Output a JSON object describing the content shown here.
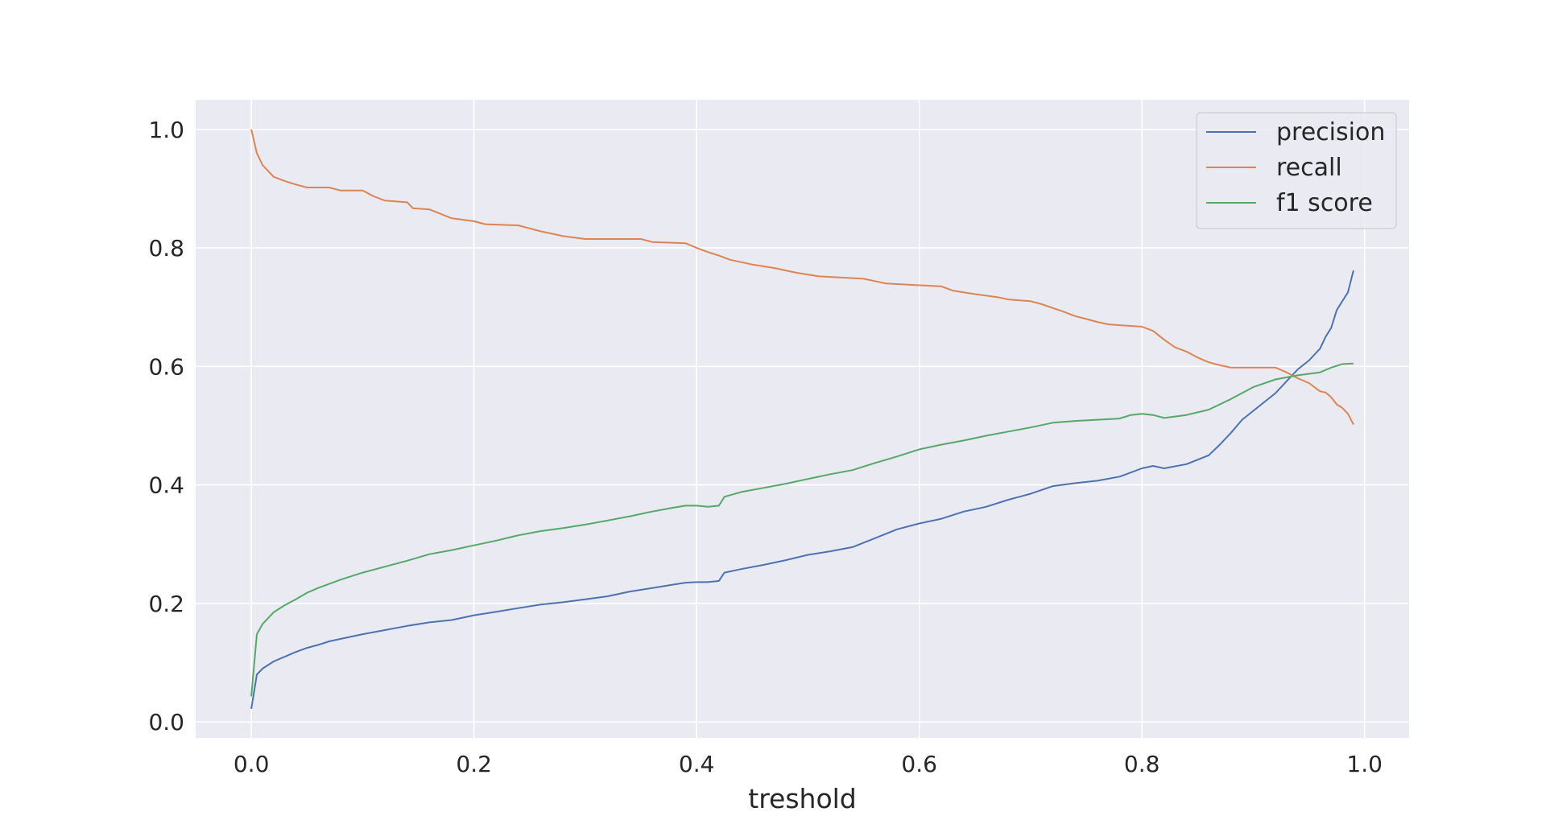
{
  "chart_data": {
    "type": "line",
    "title": "",
    "xlabel": "treshold",
    "ylabel": "",
    "xlim": [
      -0.05,
      1.04
    ],
    "ylim": [
      -0.027,
      1.05
    ],
    "xticks": [
      "0.0",
      "0.2",
      "0.4",
      "0.6",
      "0.8",
      "1.0"
    ],
    "yticks": [
      "0.0",
      "0.2",
      "0.4",
      "0.6",
      "0.8",
      "1.0"
    ],
    "grid": true,
    "legend_position": "top-right",
    "background_color": "#eaeaf2",
    "grid_color": "#ffffff",
    "series": [
      {
        "name": "precision",
        "color": "#4c72b0",
        "x": [
          0.0,
          0.005,
          0.01,
          0.02,
          0.03,
          0.04,
          0.05,
          0.06,
          0.07,
          0.08,
          0.1,
          0.12,
          0.14,
          0.16,
          0.18,
          0.2,
          0.22,
          0.24,
          0.26,
          0.28,
          0.3,
          0.32,
          0.34,
          0.36,
          0.38,
          0.39,
          0.4,
          0.41,
          0.42,
          0.425,
          0.44,
          0.46,
          0.48,
          0.5,
          0.52,
          0.54,
          0.56,
          0.58,
          0.6,
          0.62,
          0.64,
          0.66,
          0.68,
          0.7,
          0.72,
          0.74,
          0.76,
          0.78,
          0.8,
          0.81,
          0.82,
          0.84,
          0.86,
          0.87,
          0.88,
          0.89,
          0.9,
          0.91,
          0.92,
          0.93,
          0.94,
          0.95,
          0.96,
          0.965,
          0.97,
          0.975,
          0.98,
          0.985,
          0.99
        ],
        "y": [
          0.022,
          0.08,
          0.09,
          0.102,
          0.11,
          0.118,
          0.125,
          0.13,
          0.136,
          0.14,
          0.148,
          0.155,
          0.162,
          0.168,
          0.172,
          0.18,
          0.186,
          0.192,
          0.198,
          0.202,
          0.207,
          0.212,
          0.22,
          0.226,
          0.232,
          0.235,
          0.236,
          0.236,
          0.238,
          0.252,
          0.258,
          0.265,
          0.273,
          0.282,
          0.288,
          0.295,
          0.31,
          0.325,
          0.335,
          0.343,
          0.355,
          0.363,
          0.375,
          0.385,
          0.398,
          0.403,
          0.407,
          0.414,
          0.428,
          0.432,
          0.428,
          0.435,
          0.45,
          0.468,
          0.488,
          0.51,
          0.525,
          0.54,
          0.555,
          0.575,
          0.595,
          0.61,
          0.63,
          0.65,
          0.665,
          0.695,
          0.71,
          0.725,
          0.762
        ]
      },
      {
        "name": "recall",
        "color": "#dd8452",
        "x": [
          0.0,
          0.005,
          0.01,
          0.015,
          0.02,
          0.03,
          0.04,
          0.05,
          0.07,
          0.08,
          0.1,
          0.11,
          0.12,
          0.14,
          0.145,
          0.16,
          0.18,
          0.2,
          0.21,
          0.24,
          0.25,
          0.26,
          0.27,
          0.28,
          0.3,
          0.35,
          0.36,
          0.39,
          0.4,
          0.41,
          0.42,
          0.43,
          0.45,
          0.47,
          0.48,
          0.49,
          0.5,
          0.51,
          0.55,
          0.56,
          0.57,
          0.62,
          0.63,
          0.65,
          0.67,
          0.68,
          0.7,
          0.71,
          0.73,
          0.74,
          0.75,
          0.76,
          0.77,
          0.8,
          0.81,
          0.82,
          0.83,
          0.84,
          0.85,
          0.86,
          0.87,
          0.88,
          0.92,
          0.93,
          0.94,
          0.95,
          0.96,
          0.965,
          0.97,
          0.975,
          0.98,
          0.985,
          0.99
        ],
        "y": [
          1.0,
          0.96,
          0.94,
          0.93,
          0.92,
          0.913,
          0.907,
          0.902,
          0.902,
          0.897,
          0.897,
          0.887,
          0.88,
          0.877,
          0.867,
          0.865,
          0.85,
          0.845,
          0.84,
          0.838,
          0.833,
          0.828,
          0.824,
          0.82,
          0.815,
          0.815,
          0.81,
          0.808,
          0.8,
          0.793,
          0.787,
          0.78,
          0.772,
          0.766,
          0.762,
          0.758,
          0.755,
          0.752,
          0.748,
          0.744,
          0.74,
          0.735,
          0.728,
          0.722,
          0.717,
          0.713,
          0.71,
          0.705,
          0.692,
          0.685,
          0.68,
          0.675,
          0.671,
          0.667,
          0.66,
          0.645,
          0.632,
          0.625,
          0.615,
          0.607,
          0.602,
          0.598,
          0.598,
          0.59,
          0.58,
          0.572,
          0.558,
          0.556,
          0.548,
          0.536,
          0.53,
          0.52,
          0.502
        ]
      },
      {
        "name": "f1 score",
        "color": "#55a868",
        "x": [
          0.0,
          0.005,
          0.01,
          0.02,
          0.03,
          0.04,
          0.05,
          0.06,
          0.08,
          0.1,
          0.12,
          0.14,
          0.16,
          0.18,
          0.2,
          0.22,
          0.24,
          0.26,
          0.28,
          0.3,
          0.32,
          0.34,
          0.36,
          0.38,
          0.39,
          0.4,
          0.41,
          0.42,
          0.425,
          0.44,
          0.46,
          0.48,
          0.5,
          0.52,
          0.54,
          0.56,
          0.58,
          0.6,
          0.62,
          0.64,
          0.66,
          0.68,
          0.7,
          0.72,
          0.74,
          0.76,
          0.78,
          0.79,
          0.8,
          0.81,
          0.82,
          0.84,
          0.86,
          0.88,
          0.9,
          0.92,
          0.94,
          0.96,
          0.97,
          0.98,
          0.99
        ],
        "y": [
          0.043,
          0.148,
          0.165,
          0.185,
          0.197,
          0.207,
          0.218,
          0.226,
          0.24,
          0.252,
          0.262,
          0.272,
          0.283,
          0.29,
          0.298,
          0.306,
          0.315,
          0.322,
          0.327,
          0.333,
          0.34,
          0.347,
          0.355,
          0.362,
          0.365,
          0.365,
          0.363,
          0.365,
          0.38,
          0.388,
          0.395,
          0.402,
          0.41,
          0.418,
          0.425,
          0.437,
          0.448,
          0.46,
          0.468,
          0.475,
          0.483,
          0.49,
          0.497,
          0.505,
          0.508,
          0.51,
          0.512,
          0.518,
          0.52,
          0.518,
          0.513,
          0.518,
          0.527,
          0.545,
          0.565,
          0.578,
          0.585,
          0.59,
          0.598,
          0.604,
          0.605
        ]
      }
    ]
  }
}
